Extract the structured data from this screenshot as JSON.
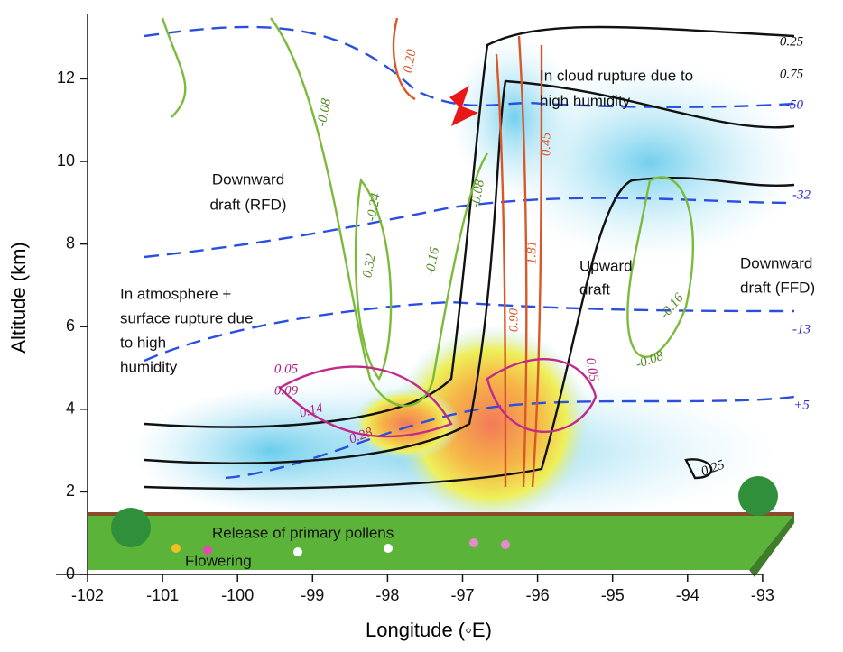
{
  "chart_data": {
    "type": "contour",
    "xlabel": "Longitude (◦E)",
    "ylabel": "Altitude (km)",
    "xlim": [
      -102,
      -92.5
    ],
    "ylim": [
      0,
      13.5
    ],
    "xticks": [
      -102,
      -101,
      -100,
      -99,
      -98,
      -97,
      -96,
      -95,
      -94,
      -93
    ],
    "yticks": [
      0,
      2,
      4,
      6,
      8,
      10,
      12
    ],
    "annotations": [
      [
        "Downward",
        "draft (RFD)"
      ],
      [
        "In cloud rupture due to",
        "high humidity"
      ],
      [
        "Upward",
        "draft"
      ],
      [
        "Downward",
        "draft (FFD)"
      ],
      [
        "In atmosphere +",
        "surface rupture due",
        "to high",
        "humidity"
      ],
      [
        "Release of primary pollens"
      ],
      [
        "Flowering"
      ]
    ],
    "contour_labels": [
      "0.25",
      "0.75",
      "-50",
      "-32",
      "-13",
      "+5",
      "0.20",
      "-0.08",
      "-0.24",
      "0.32",
      "-0.16",
      "-0.08",
      "0.45",
      "1.81",
      "0.90",
      "0.05",
      "0.09",
      "0.14",
      "0.28",
      "0.05",
      "-0.16",
      "-0.08",
      "0.25"
    ]
  }
}
